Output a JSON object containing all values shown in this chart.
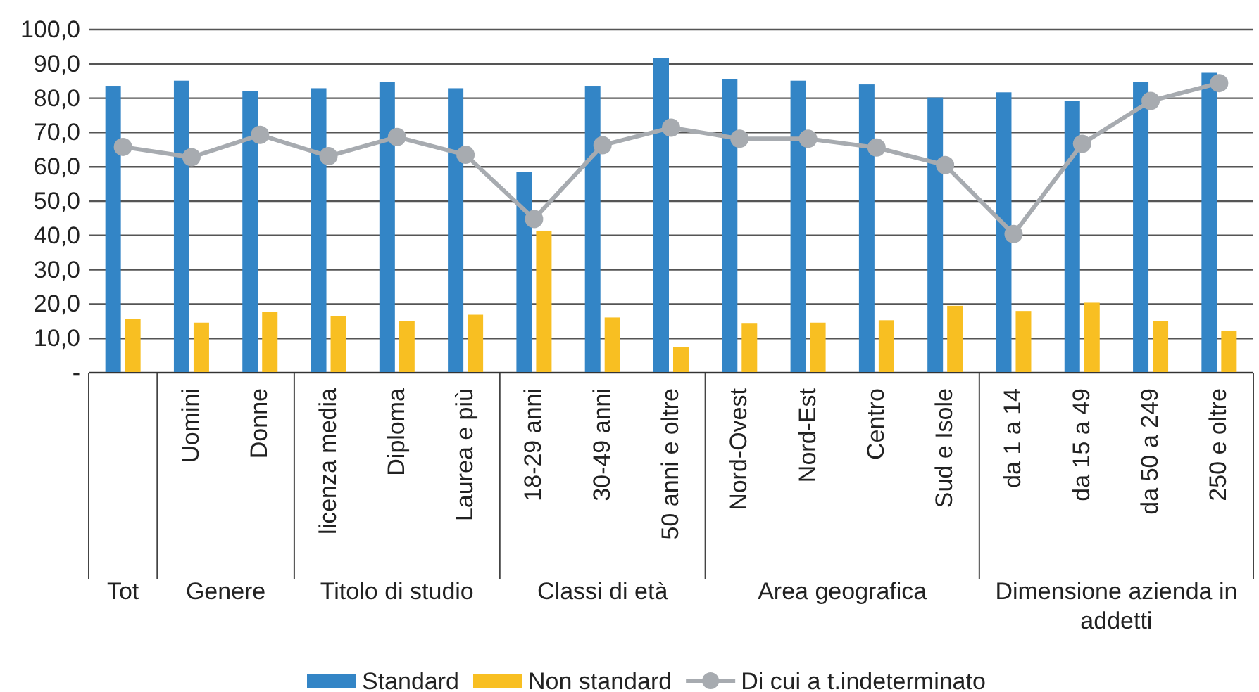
{
  "chart_data": {
    "type": "bar",
    "categories": [
      null,
      "Uomini",
      "Donne",
      "licenza media",
      "Diploma",
      "Laurea e più",
      "18-29 anni",
      "30-49 anni",
      "50 anni e oltre",
      "Nord-Ovest",
      "Nord-Est",
      "Centro",
      "Sud e Isole",
      "da 1 a 14",
      "da 15 a 49",
      "da 50 a 249",
      "250 e oltre"
    ],
    "series": [
      {
        "name": "Standard",
        "color": "#3385c6",
        "values": [
          83.6,
          85.1,
          82.1,
          82.9,
          84.8,
          82.9,
          58.5,
          83.6,
          91.8,
          85.5,
          85.1,
          84.0,
          80.2,
          81.7,
          79.2,
          84.7,
          87.4
        ]
      },
      {
        "name": "Non standard",
        "color": "#f8bf22",
        "values": [
          15.7,
          14.6,
          17.8,
          16.4,
          15.0,
          16.9,
          41.4,
          16.1,
          7.5,
          14.3,
          14.6,
          15.3,
          19.5,
          18.0,
          20.4,
          15.0,
          12.3
        ]
      },
      {
        "name": "Di cui a t.indeterminato",
        "type": "line",
        "color": "#a7abb0",
        "marker": "circle",
        "values": [
          65.8,
          62.8,
          69.3,
          63.1,
          68.7,
          63.5,
          44.8,
          66.3,
          71.4,
          68.2,
          68.2,
          65.6,
          60.5,
          40.4,
          66.7,
          79.2,
          84.4
        ]
      }
    ],
    "ylim": [
      0,
      100
    ],
    "yticks": [
      {
        "value": 0,
        "label": "-"
      },
      {
        "value": 10,
        "label": "10,0"
      },
      {
        "value": 20,
        "label": "20,0"
      },
      {
        "value": 30,
        "label": "30,0"
      },
      {
        "value": 40,
        "label": "40,0"
      },
      {
        "value": 50,
        "label": "50,0"
      },
      {
        "value": 60,
        "label": "60,0"
      },
      {
        "value": 70,
        "label": "70,0"
      },
      {
        "value": 80,
        "label": "80,0"
      },
      {
        "value": 90,
        "label": "90,0"
      },
      {
        "value": 100,
        "label": "100,0"
      }
    ],
    "grid": "y",
    "legend": "bottom",
    "annotations": [
      "Tot",
      "Genere",
      "Titolo di studio",
      "Classi di età",
      "Area geografica",
      "Dimensione azienda in addetti"
    ]
  }
}
